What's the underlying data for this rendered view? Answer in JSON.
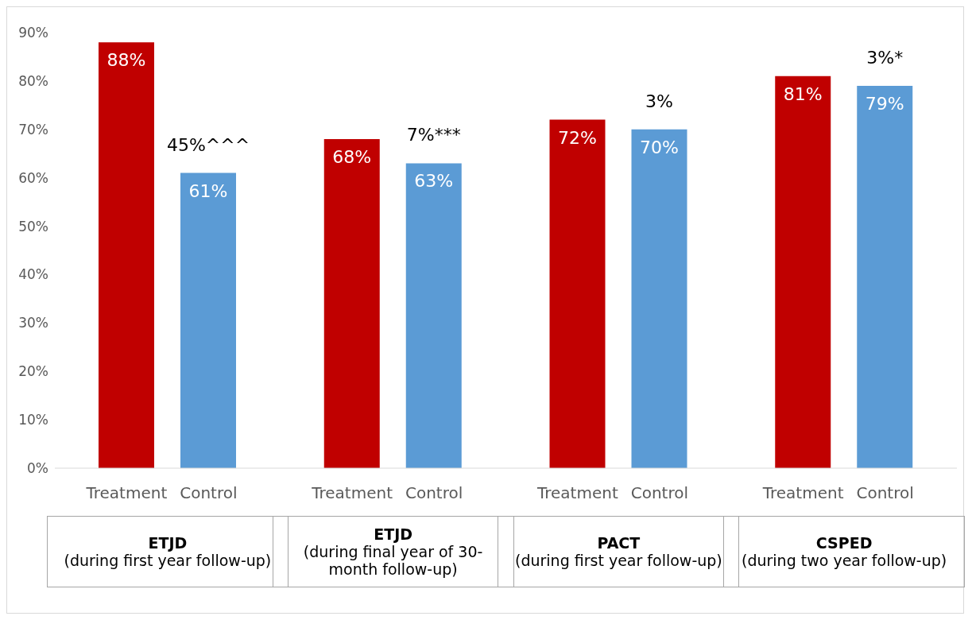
{
  "chart_data": {
    "type": "bar",
    "categories": [
      "Treatment",
      "Control",
      "Treatment",
      "Control",
      "Treatment",
      "Control",
      "Treatment",
      "Control"
    ],
    "values": [
      88,
      61,
      68,
      63,
      72,
      70,
      81,
      79
    ],
    "colors": [
      "#c00000",
      "#5b9bd5",
      "#c00000",
      "#5b9bd5",
      "#c00000",
      "#5b9bd5",
      "#c00000",
      "#5b9bd5"
    ],
    "value_labels": [
      "88%",
      "61%",
      "68%",
      "63%",
      "72%",
      "70%",
      "81%",
      "79%"
    ],
    "ylim": [
      0,
      90
    ],
    "yticks": [
      {
        "value": 0,
        "label": "0%"
      },
      {
        "value": 10,
        "label": "10%"
      },
      {
        "value": 20,
        "label": "20%"
      },
      {
        "value": 30,
        "label": "30%"
      },
      {
        "value": 40,
        "label": "40%"
      },
      {
        "value": 50,
        "label": "50%"
      },
      {
        "value": 60,
        "label": "60%"
      },
      {
        "value": 70,
        "label": "70%"
      },
      {
        "value": 80,
        "label": "80%"
      },
      {
        "value": 90,
        "label": "90%"
      }
    ],
    "annotations": [
      "45%^^^",
      "7%***",
      "3%",
      "3%*",
      "ETJD\n(during first year follow-up)",
      "ETJD\n(during final year of 30-month follow-up)",
      "PACT\n(during first year follow-up)",
      "CSPED\n(during two year follow-up)"
    ],
    "grid": false,
    "legend": false
  }
}
